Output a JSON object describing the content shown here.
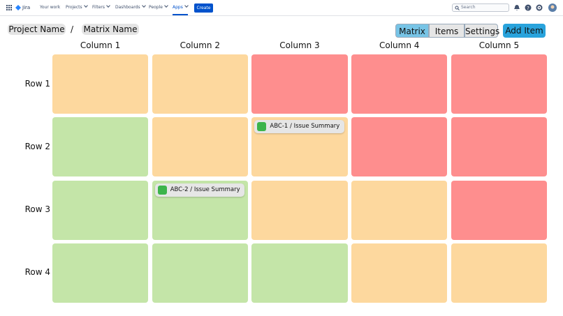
{
  "nav": {
    "product": "Jira",
    "items": [
      "Your work",
      "Projects",
      "Filters",
      "Dashboards",
      "People",
      "Apps"
    ],
    "active": "Apps",
    "dropdowns": [
      "Projects",
      "Filters",
      "Dashboards",
      "People",
      "Apps"
    ],
    "create": "Create",
    "search": "Search"
  },
  "breadcrumb": {
    "project": "Project Name",
    "separator": "/",
    "matrix": "Matrix Name"
  },
  "tabs": {
    "items": [
      "Matrix",
      "Items",
      "Settings"
    ],
    "active": "Matrix"
  },
  "add_button": "Add Item",
  "matrix": {
    "columns": [
      "Column 1",
      "Column 2",
      "Column 3",
      "Column 4",
      "Column 5"
    ],
    "rows": [
      "Row 1",
      "Row 2",
      "Row 3",
      "Row 4"
    ],
    "cells": [
      [
        {
          "color": "#fdd89e",
          "items": []
        },
        {
          "color": "#fdd89e",
          "items": []
        },
        {
          "color": "#fe8e8e",
          "items": []
        },
        {
          "color": "#fe8e8e",
          "items": []
        },
        {
          "color": "#fe8e8e",
          "items": []
        }
      ],
      [
        {
          "color": "#c4e5a8",
          "items": []
        },
        {
          "color": "#fdd89e",
          "items": []
        },
        {
          "color": "#fdd89e",
          "items": [
            "ABC-1 / Issue Summary"
          ]
        },
        {
          "color": "#fe8e8e",
          "items": []
        },
        {
          "color": "#fe8e8e",
          "items": []
        }
      ],
      [
        {
          "color": "#c4e5a8",
          "items": []
        },
        {
          "color": "#c4e5a8",
          "items": [
            "ABC-2 / Issue Summary"
          ]
        },
        {
          "color": "#fdd89e",
          "items": []
        },
        {
          "color": "#fdd89e",
          "items": []
        },
        {
          "color": "#fe8e8e",
          "items": []
        }
      ],
      [
        {
          "color": "#c4e5a8",
          "items": []
        },
        {
          "color": "#c4e5a8",
          "items": []
        },
        {
          "color": "#c4e5a8",
          "items": []
        },
        {
          "color": "#fdd89e",
          "items": []
        },
        {
          "color": "#fdd89e",
          "items": []
        }
      ]
    ]
  }
}
